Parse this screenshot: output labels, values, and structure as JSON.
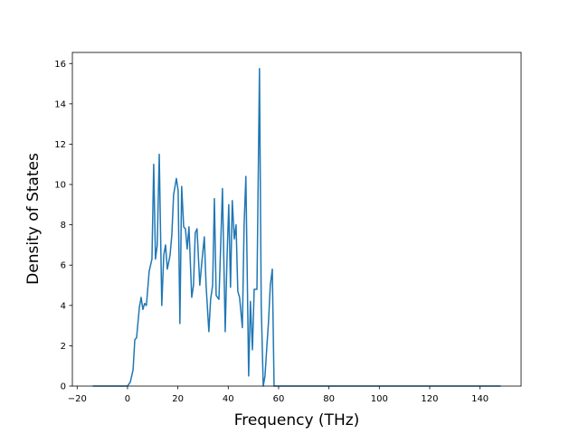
{
  "chart_data": {
    "type": "line",
    "xlabel": "Frequency (THz)",
    "ylabel": "Density of States",
    "xlim": [
      -21.9,
      156.3
    ],
    "ylim": [
      0,
      16.55
    ],
    "xticks": [
      {
        "value": -20,
        "label": "−20"
      },
      0,
      20,
      40,
      60,
      80,
      100,
      120,
      140
    ],
    "yticks": [
      0,
      2,
      4,
      6,
      8,
      10,
      12,
      14,
      16
    ],
    "grid": false,
    "series": [
      {
        "color": "#1f77b4",
        "x": [
          -13.8,
          0,
          1.1,
          2.2,
          2.9,
          3.6,
          4.7,
          5.4,
          6.1,
          6.8,
          7.5,
          8.6,
          9.7,
          10.4,
          11.1,
          11.8,
          12.6,
          13.6,
          14.4,
          15.1,
          15.8,
          16.9,
          17.6,
          18.3,
          19.4,
          20.1,
          20.8,
          21.5,
          22.3,
          23.0,
          23.7,
          24.4,
          25.5,
          26.2,
          26.9,
          27.6,
          28.7,
          29.4,
          30.5,
          31.2,
          32.3,
          33.0,
          33.8,
          34.5,
          35.2,
          36.3,
          37.0,
          37.7,
          38.8,
          39.5,
          40.2,
          40.9,
          41.6,
          42.4,
          43.1,
          43.8,
          44.5,
          45.6,
          46.3,
          47.0,
          48.1,
          48.8,
          49.6,
          50.3,
          51.4,
          52.4,
          53.1,
          53.9,
          54.6,
          55.3,
          56.0,
          56.7,
          57.5,
          58.2,
          148.2
        ],
        "values": [
          0,
          0,
          0.2,
          0.8,
          2.3,
          2.4,
          3.9,
          4.4,
          3.8,
          4.1,
          4.0,
          5.7,
          6.3,
          11.0,
          6.3,
          7.0,
          11.5,
          4.0,
          6.5,
          7.0,
          5.8,
          6.5,
          7.5,
          9.5,
          10.3,
          9.7,
          3.1,
          9.9,
          7.9,
          7.8,
          6.8,
          7.9,
          4.4,
          5.0,
          7.6,
          7.8,
          5.0,
          6.0,
          7.4,
          5.0,
          2.7,
          4.3,
          5.0,
          9.3,
          4.5,
          4.3,
          7.0,
          9.8,
          2.7,
          6.3,
          9.0,
          4.9,
          9.2,
          7.3,
          8.0,
          4.7,
          4.4,
          2.9,
          8.0,
          10.4,
          0.5,
          4.2,
          1.8,
          4.8,
          4.8,
          15.75,
          4.0,
          0,
          0.5,
          1.9,
          3.2,
          5.0,
          5.8,
          0,
          0
        ]
      }
    ]
  }
}
